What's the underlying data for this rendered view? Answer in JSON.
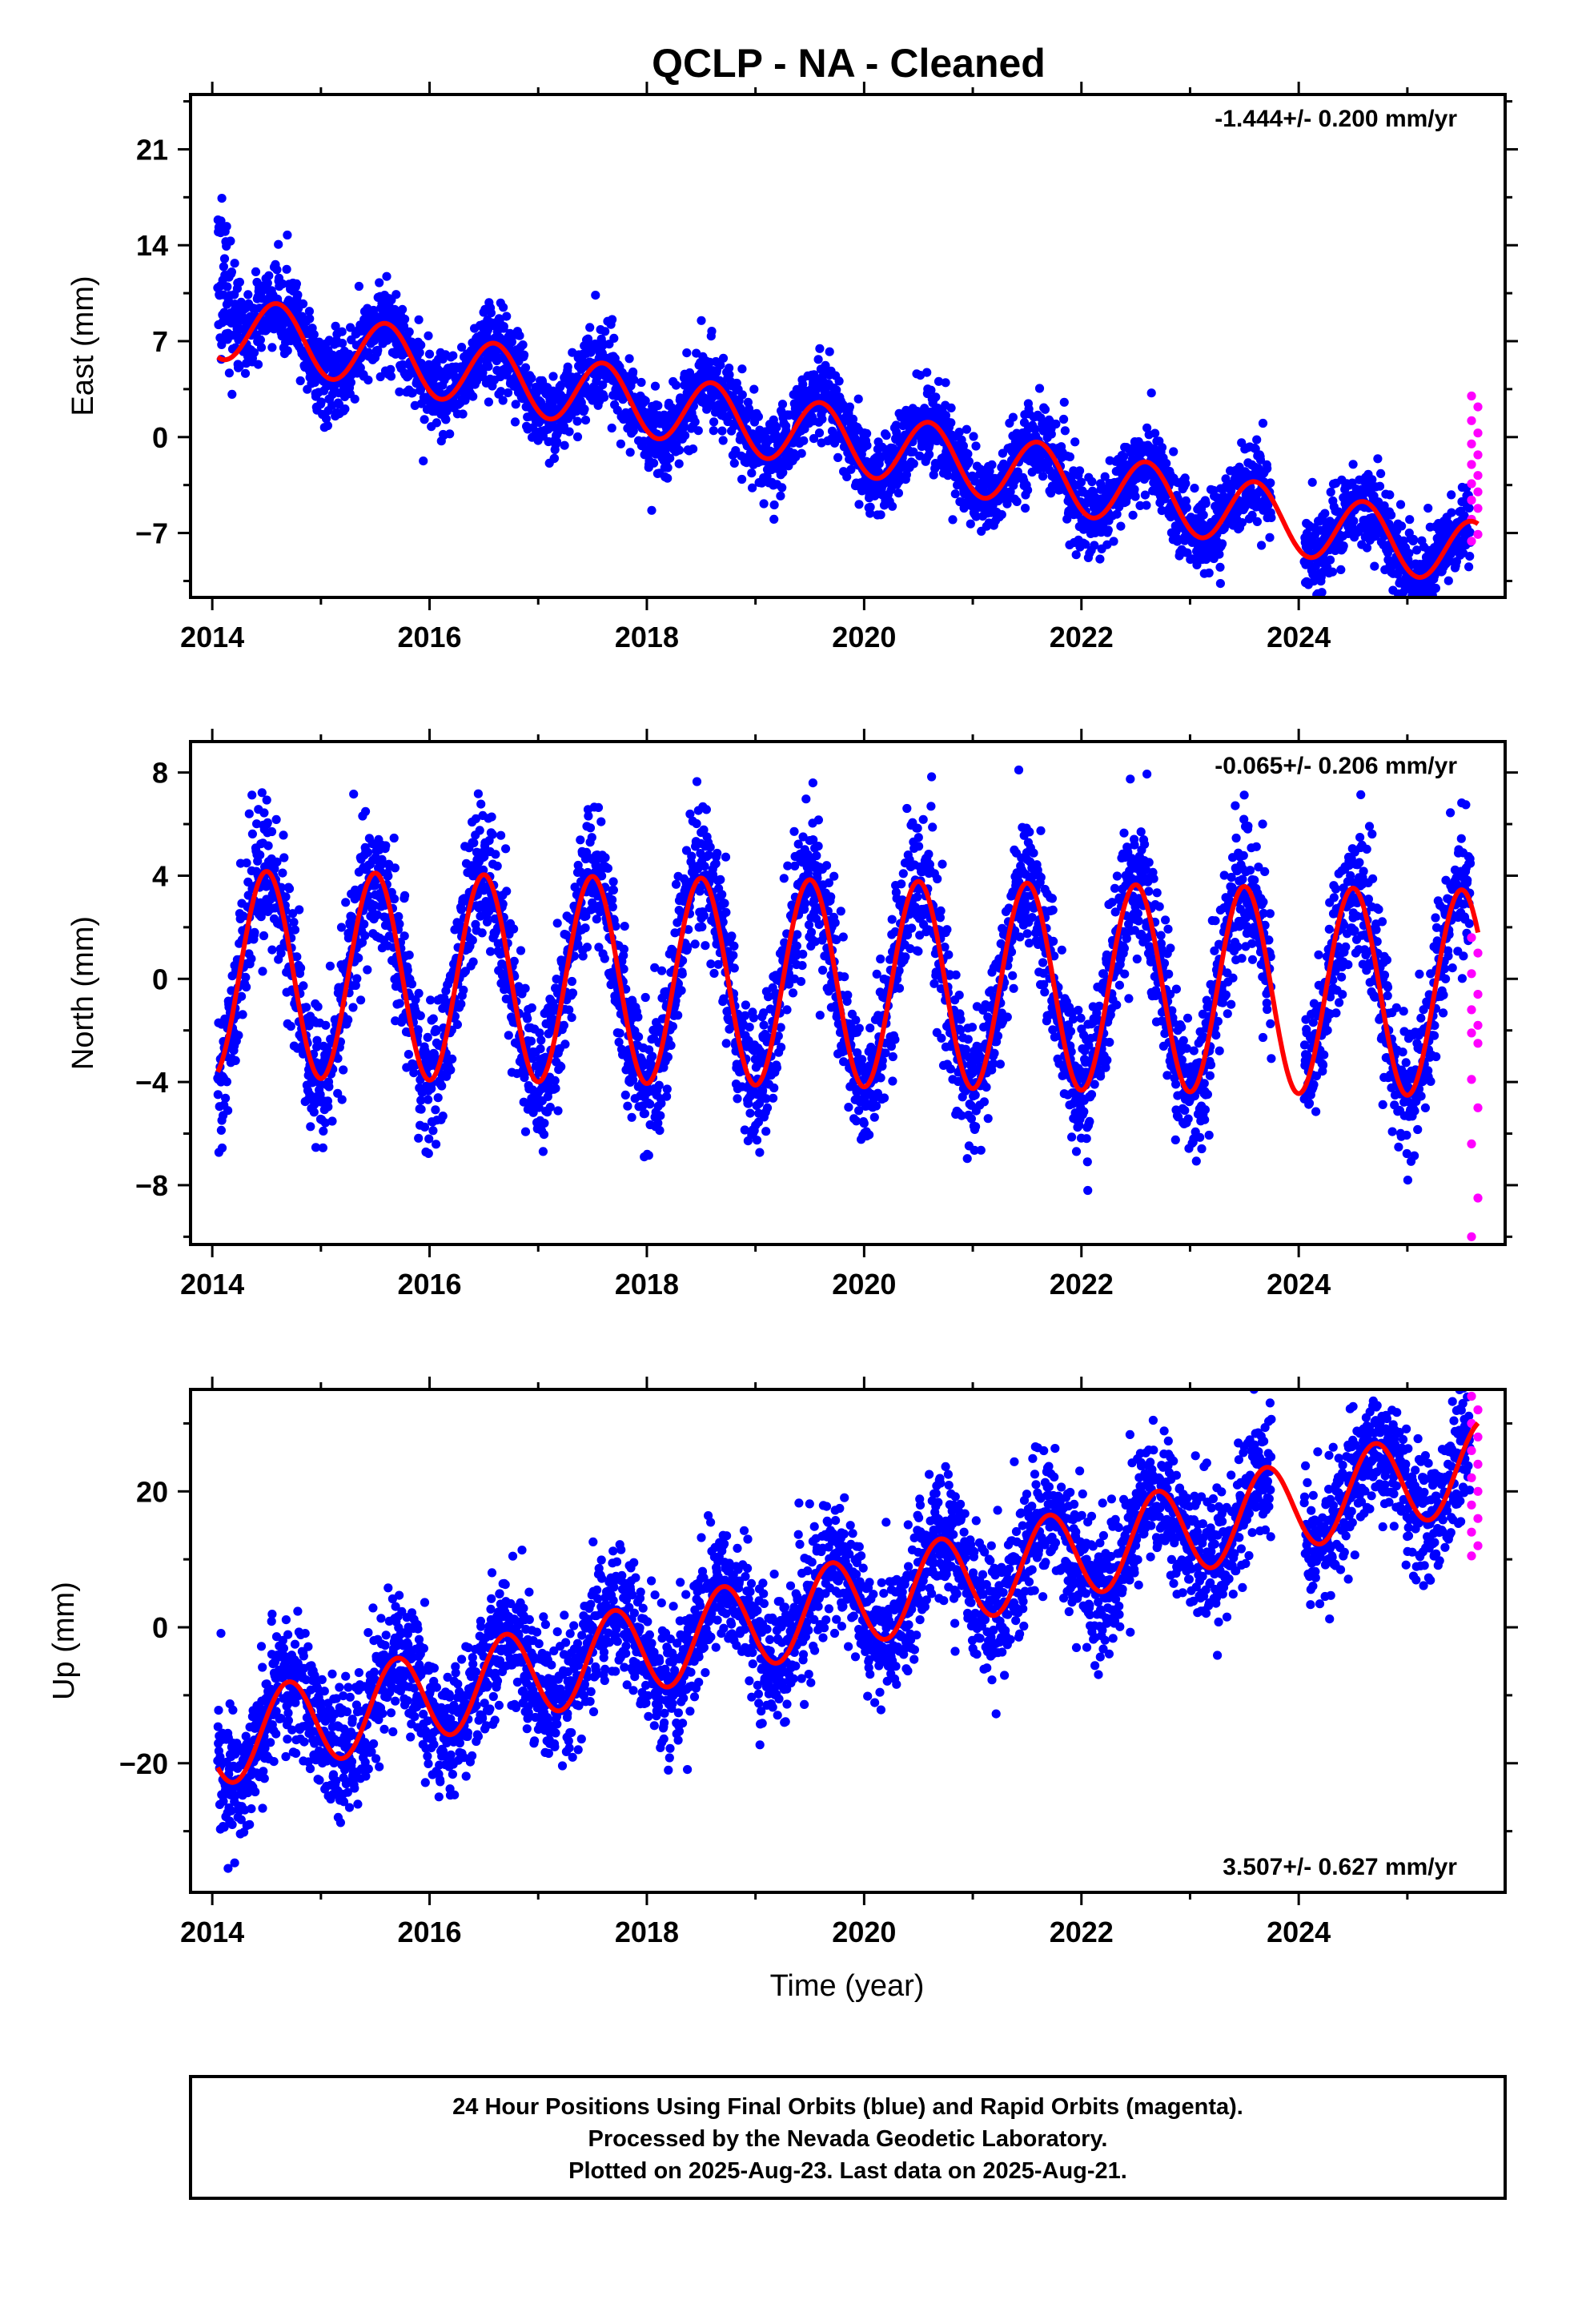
{
  "title": "QCLP  - NA - Cleaned",
  "colors": {
    "final": "#0000ff",
    "rapid": "#ff00ff",
    "model": "#ff0000",
    "frame": "#000000"
  },
  "footer": {
    "line1": "24 Hour Positions Using Final Orbits (blue) and Rapid Orbits (magenta).",
    "line2": "Processed by the Nevada Geodetic Laboratory.",
    "line3": "Plotted on 2025-Aug-23. Last data on 2025-Aug-21."
  },
  "chart_data": [
    {
      "type": "scatter",
      "name": "East",
      "ylabel": "East (mm)",
      "xlabel": "",
      "rate": "-1.444+/- 0.200 mm/yr",
      "rate_position": "top-right",
      "xlim": [
        2013.8,
        2025.9
      ],
      "ylim": [
        -11.7,
        25
      ],
      "xticks": [
        "2014",
        "2016",
        "2018",
        "2020",
        "2022",
        "2024"
      ],
      "yticks": [
        "21",
        "14",
        "7",
        "0",
        "-7"
      ],
      "model": {
        "offset": 8.2,
        "trend": -1.444,
        "amplitude": 2.4,
        "phase_year": 2014.6,
        "x": [
          2014.05,
          2025.65
        ]
      },
      "gaps": [
        [
          2023.75,
          2024.05
        ]
      ],
      "rapid": {
        "x": 2025.62,
        "values": [
          3.0,
          2.2,
          1.2,
          0.3,
          -0.5,
          -1.3,
          -2.0,
          -2.8,
          -3.4,
          -4.0,
          -4.6,
          -5.2,
          -6.0,
          -7.1,
          -7.6
        ]
      }
    },
    {
      "type": "scatter",
      "name": "North",
      "ylabel": "North (mm)",
      "xlabel": "",
      "rate": "-0.065+/- 0.206 mm/yr",
      "rate_position": "top-right",
      "xlim": [
        2013.8,
        2025.9
      ],
      "ylim": [
        -10.3,
        9.2
      ],
      "xticks": [
        "2014",
        "2016",
        "2018",
        "2020",
        "2022",
        "2024"
      ],
      "yticks": [
        "8",
        "4",
        "0",
        "-4",
        "-8"
      ],
      "model": {
        "offset": 0.2,
        "trend": -0.065,
        "amplitude": 4.0,
        "phase_year": 2014.5,
        "x": [
          2014.05,
          2025.65
        ]
      },
      "gaps": [
        [
          2023.75,
          2024.05
        ]
      ],
      "rapid": {
        "x": 2025.62,
        "values": [
          1.6,
          1.0,
          0.2,
          -0.6,
          -1.2,
          -1.8,
          -2.1,
          -2.5,
          -3.9,
          -5.0,
          -6.4,
          -8.5,
          -10.0
        ]
      }
    },
    {
      "type": "scatter",
      "name": "Up",
      "ylabel": "Up (mm)",
      "xlabel": "Time (year)",
      "rate": "3.507+/- 0.627 mm/yr",
      "rate_position": "bottom-right",
      "xlim": [
        2013.8,
        2025.9
      ],
      "ylim": [
        -39,
        35
      ],
      "xticks": [
        "2014",
        "2016",
        "2018",
        "2020",
        "2022",
        "2024"
      ],
      "yticks": [
        "20",
        "0",
        "-20"
      ],
      "model": {
        "offset": -17,
        "trend": 3.507,
        "amplitude": 6.5,
        "phase_year": 2014.7,
        "x": [
          2014.05,
          2025.65
        ]
      },
      "gaps": [
        [
          2023.75,
          2024.05
        ]
      ],
      "rapid": {
        "x": 2025.62,
        "values": [
          34,
          32,
          30,
          28,
          26,
          24,
          22,
          20,
          18,
          16,
          14,
          12,
          10.5
        ]
      }
    }
  ]
}
